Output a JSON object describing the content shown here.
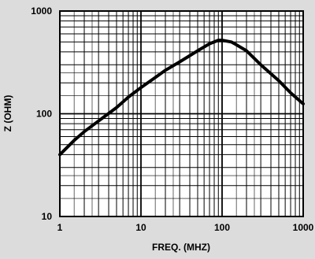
{
  "chart_data": {
    "type": "line",
    "title": "",
    "xlabel": "FREQ. (MHZ)",
    "ylabel": "Z (OHM)",
    "x_scale": "log",
    "y_scale": "log",
    "xlim": [
      1,
      1000
    ],
    "ylim": [
      10,
      1000
    ],
    "grid": true,
    "x_ticks": [
      {
        "value": 1,
        "label": "1"
      },
      {
        "value": 10,
        "label": "10"
      },
      {
        "value": 100,
        "label": "100"
      },
      {
        "value": 1000,
        "label": "1000"
      }
    ],
    "y_ticks": [
      {
        "value": 10,
        "label": "10"
      },
      {
        "value": 100,
        "label": "100"
      },
      {
        "value": 1000,
        "label": "1000"
      }
    ],
    "series": [
      {
        "x": [
          1,
          1.5,
          2,
          3,
          5,
          7,
          10,
          15,
          20,
          30,
          50,
          70,
          90,
          100,
          130,
          150,
          200,
          300,
          500,
          700,
          1000
        ],
        "y": [
          40,
          55,
          67,
          85,
          115,
          145,
          180,
          225,
          265,
          320,
          410,
          480,
          520,
          520,
          500,
          470,
          410,
          300,
          210,
          160,
          125
        ]
      }
    ],
    "colors": {
      "background": "#dcdcdc",
      "plot_area": "#ffffff",
      "line": "#000000",
      "grid": "#000000"
    }
  }
}
